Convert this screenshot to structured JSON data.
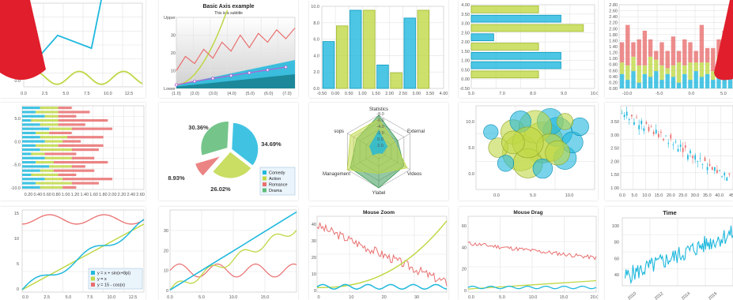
{
  "colors": {
    "blue": "#1fb8dd",
    "lime": "#bfd846",
    "red": "#e96f6f",
    "green": "#3c9a56",
    "purple": "#b55fd6",
    "grid": "#e3e3e3",
    "badge": "#e01e2c"
  },
  "chart_data": [
    {
      "id": "lines-basic",
      "type": "line",
      "x_ticks": [
        "0.0",
        "2.5",
        "5.0",
        "7.5",
        "10.0",
        "12.5"
      ],
      "y_ticks": [
        "0.0"
      ],
      "xlim": [
        0,
        14
      ],
      "ylim": [
        -0.5,
        6
      ],
      "series": [
        {
          "values_x": [
            0,
            4,
            8,
            10,
            12
          ],
          "values_y": [
            0.5,
            3.5,
            2.5,
            9,
            14
          ]
        },
        {
          "values_x": [
            0,
            1,
            2,
            3,
            4,
            5,
            6,
            7,
            8,
            9,
            10,
            11,
            12,
            13,
            14
          ],
          "values_y": [
            0.2,
            0.6,
            0.2,
            -0.2,
            0.2,
            0.6,
            0.2,
            -0.2,
            0.2,
            0.6,
            0.2,
            -0.2,
            0.2,
            0.6,
            0.2
          ]
        }
      ]
    },
    {
      "id": "basic-axis",
      "type": "area",
      "title": "Basic Axis example",
      "subtitle": "This is a subtitle",
      "x_ticks": [
        "(1.0)",
        "(2.0)",
        "(3.0)",
        "(4.0)",
        "(5.0)",
        "(6.0)",
        "(7.0)"
      ],
      "y_ticks": [
        "Upper",
        "30",
        "20",
        "10",
        "Lower"
      ],
      "xlim": [
        1,
        7.5
      ],
      "ylim": [
        0,
        40
      ],
      "bands": [
        {
          "x": [
            1,
            7.5
          ],
          "y0": [
            0,
            0
          ],
          "y1": [
            2,
            16
          ]
        },
        {
          "x": [
            1,
            7.5
          ],
          "y0": [
            0,
            0
          ],
          "y1": [
            1,
            8
          ]
        }
      ],
      "series": [
        {
          "x": [
            1,
            2,
            3,
            3.8
          ],
          "y": [
            2,
            12,
            26,
            42
          ]
        },
        {
          "x": [
            1,
            1.5,
            2,
            2.5,
            3,
            3.5,
            4,
            4.5,
            5,
            5.5,
            6,
            6.5,
            7,
            7.5
          ],
          "y": [
            10,
            18,
            14,
            22,
            17,
            26,
            21,
            30,
            23,
            31,
            26,
            33,
            28,
            34
          ]
        },
        {
          "x": [
            1,
            1.5,
            2,
            2.5,
            3,
            3.5,
            4,
            4.5,
            5,
            5.5,
            6,
            6.5,
            7
          ],
          "y": [
            2,
            3,
            4,
            4.8,
            5.6,
            6.4,
            7.2,
            8,
            8.8,
            9.6,
            10.4,
            11.2,
            12
          ]
        }
      ]
    },
    {
      "id": "bars-vertical",
      "type": "bar",
      "x_ticks": [
        "-0.50",
        "0.00",
        "0.50",
        "1.00",
        "1.50",
        "2.00",
        "2.50",
        "3.00",
        "3.50",
        "4.00"
      ],
      "y_ticks": [
        "10.0",
        "8.0",
        "6.0",
        "4.0",
        "2.0",
        "0.0"
      ],
      "xlim": [
        -0.5,
        4
      ],
      "ylim": [
        0,
        10.5
      ],
      "bars": [
        {
          "x": -0.25,
          "value": 6,
          "series": 0
        },
        {
          "x": 0.25,
          "value": 8,
          "series": 1
        },
        {
          "x": 0.75,
          "value": 10,
          "series": 0
        },
        {
          "x": 1.25,
          "value": 10,
          "series": 1
        },
        {
          "x": 1.75,
          "value": 3,
          "series": 0
        },
        {
          "x": 2.25,
          "value": 2,
          "series": 1
        },
        {
          "x": 2.75,
          "value": 9,
          "series": 0
        },
        {
          "x": 3.25,
          "value": 10,
          "series": 1
        }
      ]
    },
    {
      "id": "bars-horizontal",
      "type": "bar",
      "x_ticks": [
        "5.0",
        "7.0",
        "8.0",
        "9.0",
        "10.0"
      ],
      "y_ticks": [
        "4.00",
        "3.50",
        "3.00",
        "2.50",
        "2.00",
        "1.50",
        "1.00",
        "0.50",
        "0.00",
        "-0.50"
      ],
      "xlim": [
        5,
        10.5
      ],
      "ylim": [
        -0.5,
        4
      ],
      "bars": [
        {
          "y": 3.75,
          "value": 8.0,
          "series": 1
        },
        {
          "y": 3.25,
          "value": 9.0,
          "series": 0
        },
        {
          "y": 2.75,
          "value": 10.0,
          "series": 1
        },
        {
          "y": 2.25,
          "value": 6.0,
          "series": 0
        },
        {
          "y": 1.75,
          "value": 8.0,
          "series": 1
        },
        {
          "y": 1.25,
          "value": 9.0,
          "series": 0
        },
        {
          "y": 0.75,
          "value": 9.0,
          "series": 0
        },
        {
          "y": 0.25,
          "value": 8.0,
          "series": 1
        }
      ]
    },
    {
      "id": "stacked-vertical",
      "type": "bar",
      "x_ticks": [
        "-10.0",
        "-5.0",
        "0.0",
        "5.0"
      ],
      "y_ticks": [
        "2.80",
        "2.60",
        "2.40",
        "2.20",
        "2.00",
        "1.80",
        "1.60",
        "1.40",
        "1.20",
        "1.00",
        "0.80",
        "0.60",
        "0.40",
        "0.20",
        "0.00"
      ],
      "xlim": [
        -11,
        7
      ],
      "ylim": [
        0,
        2.9
      ],
      "stacks": [
        [
          0.5,
          0.4,
          0.7
        ],
        [
          0.3,
          0.5,
          1.4
        ],
        [
          0.6,
          0.5,
          0.5
        ],
        [
          0.2,
          0.6,
          0.9
        ],
        [
          0.5,
          0.3,
          1.2
        ],
        [
          0.4,
          0.7,
          0.6
        ],
        [
          0.6,
          0.4,
          0.3
        ],
        [
          0.3,
          0.5,
          0.8
        ],
        [
          0.5,
          0.2,
          0.6
        ],
        [
          0.4,
          0.4,
          1.0
        ],
        [
          0.2,
          0.7,
          0.4
        ],
        [
          0.5,
          0.3,
          0.9
        ],
        [
          0.3,
          0.6,
          0.7
        ],
        [
          0.6,
          0.3,
          0.4
        ],
        [
          0.4,
          0.5,
          1.3
        ],
        [
          0.5,
          0.4,
          0.5
        ],
        [
          0.3,
          0.3,
          0.8
        ],
        [
          0.6,
          0.5,
          0.6
        ],
        [
          0.4,
          0.6,
          1.0
        ],
        [
          0.5,
          0.2,
          0.5
        ]
      ]
    },
    {
      "id": "stacked-horizontal",
      "type": "bar",
      "x_ticks": [
        "0.20",
        "0.40",
        "0.60",
        "0.80",
        "1.00",
        "1.20",
        "1.40",
        "1.60",
        "1.80",
        "2.00",
        "2.20",
        "2.40",
        "2.60"
      ],
      "y_ticks": [
        "5.0",
        "0.0",
        "-5.0",
        "-10.0"
      ],
      "xlim": [
        0,
        2.7
      ],
      "ylim": [
        -11,
        9
      ],
      "stacks": [
        [
          0.4,
          0.5,
          0.3
        ],
        [
          0.3,
          0.8,
          0.6
        ],
        [
          0.5,
          0.4,
          1.1
        ],
        [
          0.2,
          0.6,
          0.4
        ],
        [
          0.4,
          0.3,
          0.9
        ],
        [
          0.6,
          0.5,
          0.3
        ],
        [
          0.3,
          0.4,
          1.2
        ],
        [
          0.5,
          0.6,
          0.5
        ],
        [
          0.2,
          0.3,
          0.7
        ],
        [
          0.4,
          0.7,
          0.6
        ],
        [
          0.3,
          0.5,
          1.0
        ],
        [
          0.5,
          0.4,
          0.4
        ],
        [
          0.4,
          0.6,
          0.8
        ],
        [
          0.3,
          0.3,
          0.5
        ],
        [
          0.6,
          0.5,
          0.9
        ],
        [
          0.4,
          0.4,
          0.6
        ],
        [
          0.2,
          0.6,
          1.1
        ],
        [
          0.5,
          0.3,
          0.4
        ],
        [
          0.3,
          0.5,
          0.7
        ],
        [
          0.4,
          0.4,
          0.3
        ]
      ]
    },
    {
      "id": "pie",
      "type": "pie",
      "slices": [
        {
          "name": "Comedy",
          "value": 34.69,
          "label": "34.69%"
        },
        {
          "name": "Action",
          "value": 26.02,
          "label": "26.02%"
        },
        {
          "name": "Romance",
          "value": 8.93,
          "label": "8.93%"
        },
        {
          "name": "Drama",
          "value": 30.36,
          "label": "30.36%"
        }
      ],
      "legend": [
        "Comedy",
        "Action",
        "Romance",
        "Drama"
      ]
    },
    {
      "id": "radar",
      "type": "radar",
      "axes": [
        "Statistics",
        "External",
        "Videos",
        "Ylabel",
        "Management",
        "sops"
      ],
      "ring_labels": [
        "-8.0",
        "-6.0",
        "-4.0",
        "-2.0",
        "0.0",
        "2.0"
      ],
      "series": [
        {
          "values": [
            10,
            6,
            8,
            10,
            9,
            7
          ]
        },
        {
          "values": [
            9,
            5,
            9,
            6,
            10,
            9
          ]
        }
      ]
    },
    {
      "id": "bubbles",
      "type": "scatter",
      "x_ticks": [
        "0.0",
        "5.0",
        "10.0"
      ],
      "y_ticks": [
        "10.0",
        "5.0",
        "0.0"
      ],
      "xlim": [
        -4,
        12
      ],
      "ylim": [
        -3,
        13
      ],
      "points": [
        [
          5,
          6,
          2.5,
          1
        ],
        [
          2,
          4,
          2.2,
          1
        ],
        [
          7,
          8,
          1.8,
          0
        ],
        [
          1,
          8,
          1.5,
          1
        ],
        [
          3,
          2,
          1.8,
          1
        ],
        [
          8,
          3,
          1.4,
          0
        ],
        [
          6,
          10,
          1.6,
          0
        ],
        [
          -1,
          5,
          1.2,
          1
        ],
        [
          4,
          9,
          2.0,
          1
        ],
        [
          9,
          6,
          1.3,
          0
        ],
        [
          0,
          2,
          1.0,
          0
        ],
        [
          6,
          5,
          1.7,
          1
        ],
        [
          2,
          10,
          1.3,
          0
        ],
        [
          10,
          9,
          1.1,
          0
        ],
        [
          5,
          1,
          1.2,
          0
        ],
        [
          3,
          6,
          1.9,
          1
        ],
        [
          7,
          4,
          1.5,
          1
        ],
        [
          -2,
          8,
          0.9,
          0
        ],
        [
          8,
          10,
          1.0,
          1
        ],
        [
          1,
          6,
          1.4,
          1
        ]
      ]
    },
    {
      "id": "candlesticks",
      "type": "bar",
      "x_ticks": [
        "0.0",
        "5.0",
        "10.0",
        "15.0",
        "20.0",
        "25.0",
        "30.0",
        "35.0",
        "40.0",
        "45"
      ],
      "y_ticks": [
        "3.50",
        "3.00",
        "2.50",
        "2.00",
        "1.50",
        "1.00"
      ],
      "xlim": [
        0,
        46
      ],
      "ylim": [
        0.95,
        3.75
      ],
      "closes": [
        3.5,
        3.45,
        3.55,
        3.3,
        3.4,
        3.2,
        3.35,
        3.1,
        3.25,
        3.0,
        3.15,
        2.9,
        3.05,
        2.8,
        2.95,
        2.7,
        2.85,
        2.6,
        2.75,
        2.5,
        2.65,
        2.45,
        2.55,
        2.3,
        2.45,
        2.2,
        2.35,
        2.1,
        2.25,
        2.0,
        2.1,
        1.9,
        2.0,
        1.8,
        1.9,
        1.7,
        1.75,
        1.6,
        1.7,
        1.5,
        1.6,
        1.4,
        1.5,
        1.35,
        1.45
      ]
    },
    {
      "id": "functions",
      "type": "line",
      "x_ticks": [
        "0.0",
        "2.5",
        "5.0",
        "7.5",
        "10.0",
        "12.5"
      ],
      "y_ticks": [
        "15",
        "10",
        "5",
        "0"
      ],
      "xlim": [
        0,
        14
      ],
      "ylim": [
        -0.5,
        17
      ],
      "legend": [
        "y = x + sin(x+8pi)",
        "y = x",
        "y = 15 - cos(x)"
      ]
    },
    {
      "id": "lines-step",
      "type": "line",
      "x_ticks": [
        "0.0",
        "5.0",
        "10.0",
        "15.0"
      ],
      "y_ticks": [
        "30",
        "20",
        "10",
        "0"
      ],
      "xlim": [
        0,
        19
      ],
      "ylim": [
        -1,
        37
      ]
    },
    {
      "id": "mouse-zoom",
      "type": "line",
      "title": "Mouse Zoom",
      "x_ticks": [
        "0",
        "10",
        "20",
        "30"
      ],
      "y_ticks": [
        "40",
        "30",
        "20",
        "10",
        "0"
      ],
      "xlim": [
        0,
        40
      ],
      "ylim": [
        -2,
        48
      ]
    },
    {
      "id": "mouse-drag",
      "type": "line",
      "title": "Mouse Drag",
      "x_ticks": [
        "0.0",
        "5.0",
        "10.0",
        "15.0",
        "20.0"
      ],
      "y_ticks": [
        "60",
        "40",
        "20",
        "0"
      ],
      "xlim": [
        0,
        20
      ],
      "ylim": [
        -3,
        70
      ]
    },
    {
      "id": "time",
      "type": "line",
      "title": "Time",
      "x_ticks": [
        "2010",
        "2012",
        "2014",
        "2016"
      ],
      "y_ticks": [
        "100",
        "80",
        "60",
        "40"
      ],
      "xlim": [
        2009,
        2017
      ],
      "ylim": [
        25,
        110
      ]
    }
  ]
}
